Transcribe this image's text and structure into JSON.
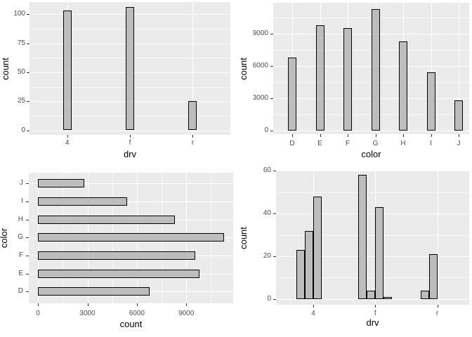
{
  "colors": {
    "panel_background": "#EBEBEB",
    "grid_major": "#FFFFFF",
    "grid_minor": "#FFFFFF",
    "bar_fill": "#BDBDBD",
    "bar_border": "#000000",
    "tick_text": "#4D4D4D",
    "axis_title_text": "#000000",
    "tick_mark": "#333333",
    "page_background": "#FFFFFF"
  },
  "chart_data": [
    {
      "id": "drv-count-bar",
      "type": "bar",
      "orientation": "vertical",
      "title": "",
      "xlabel": "drv",
      "ylabel": "count",
      "categories": [
        "4",
        "f",
        "r"
      ],
      "values": [
        103,
        106,
        25
      ],
      "y_ticks": [
        0,
        25,
        50,
        75,
        100
      ],
      "y_minor_ticks": [
        12.5,
        37.5,
        62.5,
        87.5
      ],
      "ylim": [
        -5.3,
        111.3
      ],
      "grid": true,
      "legend": "none"
    },
    {
      "id": "color-count-bar",
      "type": "bar",
      "orientation": "vertical",
      "title": "",
      "xlabel": "color",
      "ylabel": "count",
      "categories": [
        "D",
        "E",
        "F",
        "G",
        "H",
        "I",
        "J"
      ],
      "values": [
        6775,
        9797,
        9542,
        11292,
        8304,
        5422,
        2808
      ],
      "y_ticks": [
        0,
        3000,
        6000,
        9000
      ],
      "y_minor_ticks": [
        1500,
        4500,
        7500,
        10500
      ],
      "ylim": [
        -565,
        11857
      ],
      "grid": true,
      "legend": "none"
    },
    {
      "id": "color-count-bar-horizontal",
      "type": "bar",
      "orientation": "horizontal",
      "title": "",
      "xlabel": "count",
      "ylabel": "color",
      "categories_top_to_bottom": [
        "J",
        "I",
        "H",
        "G",
        "F",
        "E",
        "D"
      ],
      "values_top_to_bottom": [
        2808,
        5422,
        8304,
        11292,
        9542,
        9797,
        6775
      ],
      "x_ticks": [
        0,
        3000,
        6000,
        9000
      ],
      "x_minor_ticks": [
        1500,
        4500,
        7500,
        10500
      ],
      "xlim": [
        -565,
        11857
      ],
      "grid": true,
      "legend": "none"
    },
    {
      "id": "drv-count-dodged-bar",
      "type": "bar",
      "orientation": "vertical",
      "grouped": true,
      "title": "",
      "xlabel": "drv",
      "ylabel": "count",
      "categories": [
        "4",
        "f",
        "r"
      ],
      "group_values": [
        [
          23,
          32,
          48
        ],
        [
          58,
          4,
          43,
          1
        ],
        [
          4,
          21
        ]
      ],
      "y_ticks": [
        0,
        20,
        40,
        60
      ],
      "y_minor_ticks": [
        10,
        30,
        50
      ],
      "ylim": [
        -2.9,
        60.9
      ],
      "grid": true,
      "legend": "none"
    }
  ]
}
